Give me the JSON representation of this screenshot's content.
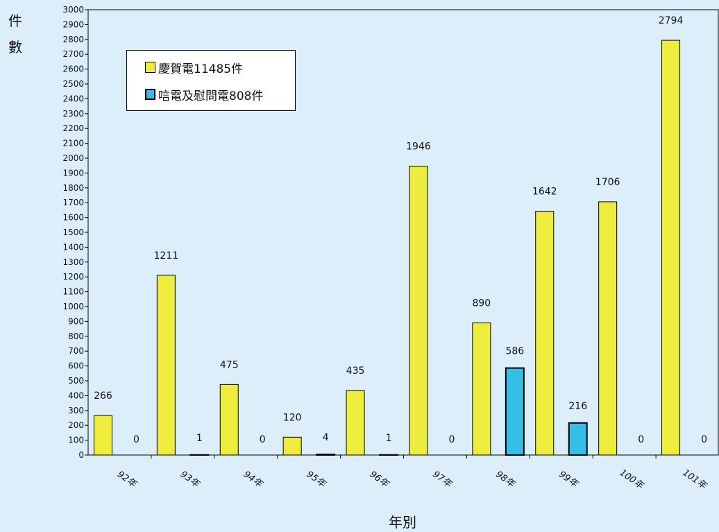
{
  "chart_data": {
    "type": "bar",
    "categories": [
      "92年",
      "93年",
      "94年",
      "95年",
      "96年",
      "97年",
      "98年",
      "99年",
      "100年",
      "101年"
    ],
    "series": [
      {
        "name": "慶賀電11485件",
        "color": "#eeec3d",
        "values": [
          266,
          1211,
          475,
          120,
          435,
          1946,
          890,
          1642,
          1706,
          2794
        ]
      },
      {
        "name": "唁電及慰問電808件",
        "color": "#35bfe7",
        "values": [
          0,
          1,
          0,
          4,
          1,
          0,
          586,
          216,
          0,
          0
        ]
      }
    ],
    "ylabel": "件數",
    "ylabel_chars": [
      "件",
      "數"
    ],
    "xlabel": "年別",
    "ylim": [
      0,
      3000
    ],
    "ytick_step": 100,
    "grid": false,
    "legend_position": "top-left",
    "background": "#dbeef9"
  }
}
